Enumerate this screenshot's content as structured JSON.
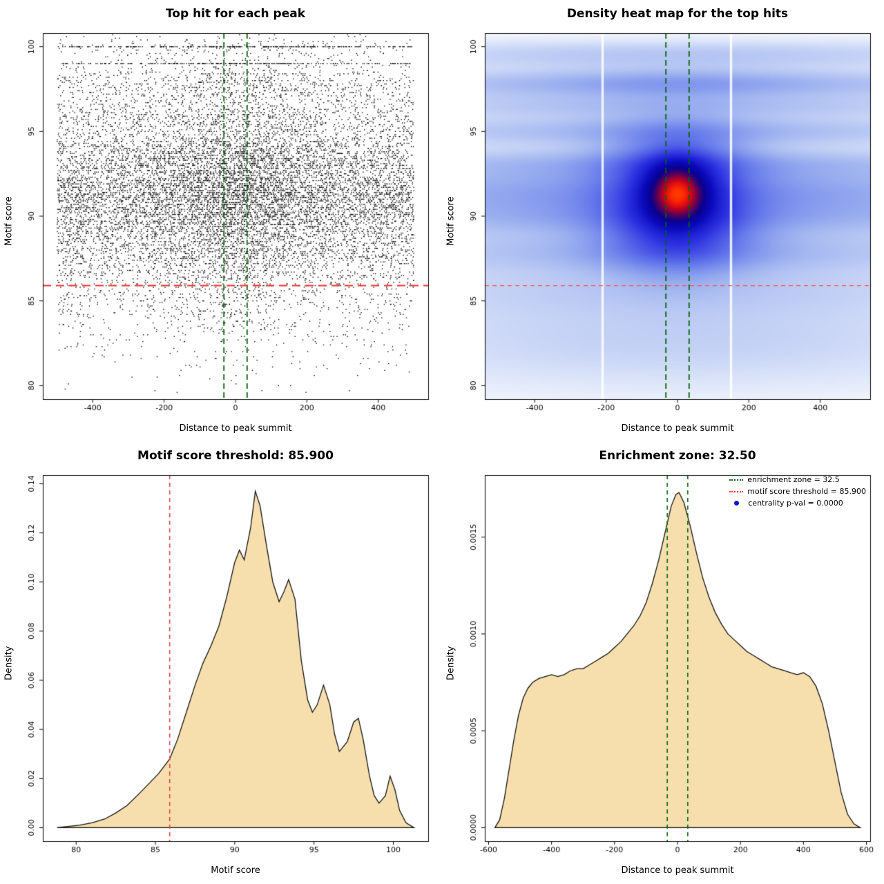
{
  "figure": {
    "background": "#ffffff"
  },
  "chart_data": [
    {
      "type": "scatter",
      "title": "Top hit for each peak",
      "xlabel": "Distance to peak summit",
      "ylabel": "Motif score",
      "xlim": [
        -540,
        540
      ],
      "ylim": [
        79.2,
        100.8
      ],
      "x_ticks": {
        "values": [
          -400,
          -200,
          0,
          200,
          400
        ],
        "labels": [
          "-400",
          "-200",
          "0",
          "200",
          "400"
        ]
      },
      "y_ticks": {
        "values": [
          80,
          85,
          90,
          95,
          100
        ],
        "labels": [
          "80",
          "85",
          "90",
          "95",
          "100"
        ]
      },
      "point_color": "#000000",
      "n_points": 14000,
      "seed": 123456789,
      "y_quantize": 0.1,
      "x_dist": {
        "uniform_frac": 0.8,
        "normal_sigma": 125,
        "range": [
          -500,
          500
        ]
      },
      "extra_rows": [
        {
          "y": 100,
          "frac": 0.018
        },
        {
          "y": 99,
          "frac": 0.018
        }
      ],
      "threshold_line": {
        "y": 85.9,
        "color": "#ff2d2d",
        "dash": [
          12,
          7
        ],
        "width": 2
      },
      "zone_lines": {
        "x": [
          -32.5,
          32.5
        ],
        "color": "#006400",
        "dash": [
          8,
          5
        ],
        "width": 1.8
      }
    },
    {
      "type": "heatmap",
      "title": "Density heat map for the top hits",
      "xlabel": "Distance to peak summit",
      "ylabel": "Motif score",
      "xlim": [
        -540,
        540
      ],
      "ylim": [
        79.2,
        100.8
      ],
      "x_ticks": {
        "values": [
          -400,
          -200,
          0,
          200,
          400
        ],
        "labels": [
          "-400",
          "-200",
          "0",
          "200",
          "400"
        ]
      },
      "y_ticks": {
        "values": [
          80,
          85,
          90,
          95,
          100
        ],
        "labels": [
          "80",
          "85",
          "90",
          "95",
          "100"
        ]
      },
      "gamma": 0.55,
      "components": [
        [
          0,
          99.5,
          600,
          0.55,
          0.1
        ],
        [
          0,
          97.8,
          600,
          0.55,
          0.17
        ],
        [
          0,
          96.5,
          600,
          0.5,
          0.11
        ],
        [
          0,
          95.0,
          600,
          0.6,
          0.14
        ],
        [
          0,
          93.1,
          600,
          0.6,
          0.15
        ],
        [
          0,
          91.5,
          600,
          0.9,
          0.24
        ],
        [
          0,
          89.9,
          600,
          0.8,
          0.18
        ],
        [
          0,
          87.9,
          600,
          0.8,
          0.13
        ],
        [
          0,
          85.8,
          600,
          1.1,
          0.08
        ],
        [
          0,
          83.3,
          600,
          1.5,
          0.06
        ],
        [
          0,
          81.3,
          600,
          1.5,
          0.03
        ],
        [
          0,
          91.4,
          55,
          1.15,
          1.0
        ],
        [
          0,
          91.0,
          115,
          2.3,
          0.5
        ],
        [
          0,
          89.8,
          150,
          1.5,
          0.22
        ],
        [
          0,
          93.0,
          150,
          1.0,
          0.16
        ],
        [
          0,
          87.9,
          180,
          1.0,
          0.1
        ],
        [
          0,
          95.0,
          180,
          0.8,
          0.07
        ],
        [
          0,
          97.8,
          210,
          0.7,
          0.07
        ]
      ],
      "colormap": [
        [
          0.0,
          255,
          255,
          255
        ],
        [
          0.04,
          244,
          247,
          253
        ],
        [
          0.12,
          214,
          224,
          248
        ],
        [
          0.25,
          160,
          180,
          240
        ],
        [
          0.4,
          100,
          120,
          235
        ],
        [
          0.55,
          45,
          50,
          225
        ],
        [
          0.68,
          10,
          10,
          190
        ],
        [
          0.78,
          10,
          0,
          140
        ],
        [
          0.85,
          90,
          0,
          90
        ],
        [
          0.91,
          180,
          0,
          40
        ],
        [
          0.96,
          240,
          20,
          10
        ],
        [
          1.0,
          255,
          60,
          0
        ]
      ],
      "white_gaps_x": [
        -210,
        150
      ],
      "threshold_line": {
        "y": 85.9,
        "color": "#ff5050",
        "dash": [
          6,
          5
        ],
        "width": 1.3
      },
      "zone_lines": {
        "x": [
          -32.5,
          32.5
        ],
        "color": "#006400",
        "dash": [
          8,
          5
        ],
        "width": 1.8
      }
    },
    {
      "type": "area",
      "title": "Motif score threshold: 85.900",
      "xlabel": "Motif score",
      "ylabel": "Density",
      "xlim": [
        77.9,
        102.2
      ],
      "ylim": [
        -0.0055,
        0.1435
      ],
      "x_ticks": {
        "values": [
          80,
          85,
          90,
          95,
          100
        ],
        "labels": [
          "80",
          "85",
          "90",
          "95",
          "100"
        ]
      },
      "y_ticks": {
        "values": [
          0,
          0.02,
          0.04,
          0.06,
          0.08,
          0.1,
          0.12,
          0.14
        ],
        "labels": [
          "0.00",
          "0.02",
          "0.04",
          "0.06",
          "0.08",
          "0.10",
          "0.12",
          "0.14"
        ]
      },
      "fill": "#f7dfad",
      "stroke": "#111111",
      "points": [
        [
          78.8,
          0
        ],
        [
          79.5,
          0.0005
        ],
        [
          80.2,
          0.001
        ],
        [
          81,
          0.002
        ],
        [
          81.8,
          0.0035
        ],
        [
          82.5,
          0.006
        ],
        [
          83.2,
          0.009
        ],
        [
          84,
          0.014
        ],
        [
          84.6,
          0.018
        ],
        [
          85.2,
          0.022
        ],
        [
          85.9,
          0.028
        ],
        [
          86.4,
          0.036
        ],
        [
          87,
          0.048
        ],
        [
          87.5,
          0.058
        ],
        [
          88,
          0.067
        ],
        [
          88.5,
          0.074
        ],
        [
          89,
          0.082
        ],
        [
          89.5,
          0.094
        ],
        [
          90,
          0.108
        ],
        [
          90.3,
          0.113
        ],
        [
          90.6,
          0.109
        ],
        [
          91,
          0.122
        ],
        [
          91.3,
          0.137
        ],
        [
          91.6,
          0.131
        ],
        [
          92,
          0.115
        ],
        [
          92.4,
          0.1
        ],
        [
          92.8,
          0.092
        ],
        [
          93.1,
          0.096
        ],
        [
          93.4,
          0.101
        ],
        [
          93.8,
          0.093
        ],
        [
          94.2,
          0.068
        ],
        [
          94.6,
          0.052
        ],
        [
          94.9,
          0.047
        ],
        [
          95.2,
          0.05
        ],
        [
          95.6,
          0.058
        ],
        [
          96,
          0.05
        ],
        [
          96.3,
          0.038
        ],
        [
          96.6,
          0.031
        ],
        [
          97.1,
          0.035
        ],
        [
          97.5,
          0.043
        ],
        [
          97.8,
          0.0445
        ],
        [
          98.1,
          0.036
        ],
        [
          98.5,
          0.021
        ],
        [
          98.8,
          0.013
        ],
        [
          99.1,
          0.01
        ],
        [
          99.5,
          0.013
        ],
        [
          99.8,
          0.021
        ],
        [
          100.1,
          0.0155
        ],
        [
          100.4,
          0.007
        ],
        [
          100.8,
          0.002
        ],
        [
          101.3,
          0
        ]
      ],
      "vlines": {
        "x": [
          85.9
        ],
        "color": "#dd4444",
        "dash": [
          6,
          5
        ],
        "width": 1.6
      }
    },
    {
      "type": "area",
      "title": "Enrichment zone: 32.50",
      "xlabel": "Distance to peak summit",
      "ylabel": "Density",
      "xlim": [
        -612,
        612
      ],
      "ylim": [
        -7e-05,
        0.00182
      ],
      "x_ticks": {
        "values": [
          -600,
          -400,
          -200,
          0,
          200,
          400,
          600
        ],
        "labels": [
          "-600",
          "-400",
          "-200",
          "0",
          "200",
          "400",
          "600"
        ]
      },
      "y_ticks": {
        "values": [
          0,
          0.0005,
          0.001,
          0.0015
        ],
        "labels": [
          "0.0000",
          "0.0005",
          "0.0010",
          "0.0015"
        ]
      },
      "fill": "#f7dfad",
      "stroke": "#111111",
      "points": [
        [
          -580,
          0
        ],
        [
          -565,
          4e-05
        ],
        [
          -550,
          0.00015
        ],
        [
          -535,
          0.0003
        ],
        [
          -520,
          0.00045
        ],
        [
          -505,
          0.00058
        ],
        [
          -490,
          0.00067
        ],
        [
          -475,
          0.00072
        ],
        [
          -460,
          0.00075
        ],
        [
          -440,
          0.00077
        ],
        [
          -420,
          0.00078
        ],
        [
          -400,
          0.00079
        ],
        [
          -380,
          0.00078
        ],
        [
          -360,
          0.00079
        ],
        [
          -340,
          0.00081
        ],
        [
          -320,
          0.00082
        ],
        [
          -300,
          0.00082
        ],
        [
          -280,
          0.00084
        ],
        [
          -260,
          0.00086
        ],
        [
          -240,
          0.00088
        ],
        [
          -220,
          0.0009
        ],
        [
          -200,
          0.00093
        ],
        [
          -180,
          0.00096
        ],
        [
          -160,
          0.001
        ],
        [
          -140,
          0.00104
        ],
        [
          -120,
          0.00109
        ],
        [
          -100,
          0.00116
        ],
        [
          -80,
          0.00126
        ],
        [
          -60,
          0.00138
        ],
        [
          -40,
          0.00152
        ],
        [
          -20,
          0.00166
        ],
        [
          -5,
          0.00172
        ],
        [
          5,
          0.00173
        ],
        [
          20,
          0.00168
        ],
        [
          40,
          0.00156
        ],
        [
          60,
          0.00142
        ],
        [
          80,
          0.00129
        ],
        [
          100,
          0.00119
        ],
        [
          120,
          0.00111
        ],
        [
          140,
          0.00105
        ],
        [
          160,
          0.001
        ],
        [
          180,
          0.00097
        ],
        [
          200,
          0.00094
        ],
        [
          220,
          0.00091
        ],
        [
          240,
          0.00089
        ],
        [
          260,
          0.00087
        ],
        [
          280,
          0.00085
        ],
        [
          300,
          0.00083
        ],
        [
          320,
          0.00082
        ],
        [
          340,
          0.00081
        ],
        [
          360,
          0.0008
        ],
        [
          380,
          0.00079
        ],
        [
          400,
          0.0008
        ],
        [
          420,
          0.00078
        ],
        [
          440,
          0.00073
        ],
        [
          460,
          0.00064
        ],
        [
          480,
          0.0005
        ],
        [
          500,
          0.00034
        ],
        [
          520,
          0.00018
        ],
        [
          540,
          7e-05
        ],
        [
          560,
          2e-05
        ],
        [
          580,
          0
        ]
      ],
      "vlines": {
        "x": [
          -32.5,
          32.5
        ],
        "color": "#006400",
        "dash": [
          6,
          5
        ],
        "width": 1.6
      },
      "legend": {
        "items": [
          {
            "label": "enrichment zone = 32.5",
            "color": "#006400",
            "marker": "dotted-line"
          },
          {
            "label": "motif score threshold = 85.900",
            "color": "#ff3333",
            "marker": "dotted-line"
          },
          {
            "label": "centrality p-val = 0.0000",
            "color": "#1414c8",
            "marker": "dot"
          }
        ]
      }
    }
  ]
}
